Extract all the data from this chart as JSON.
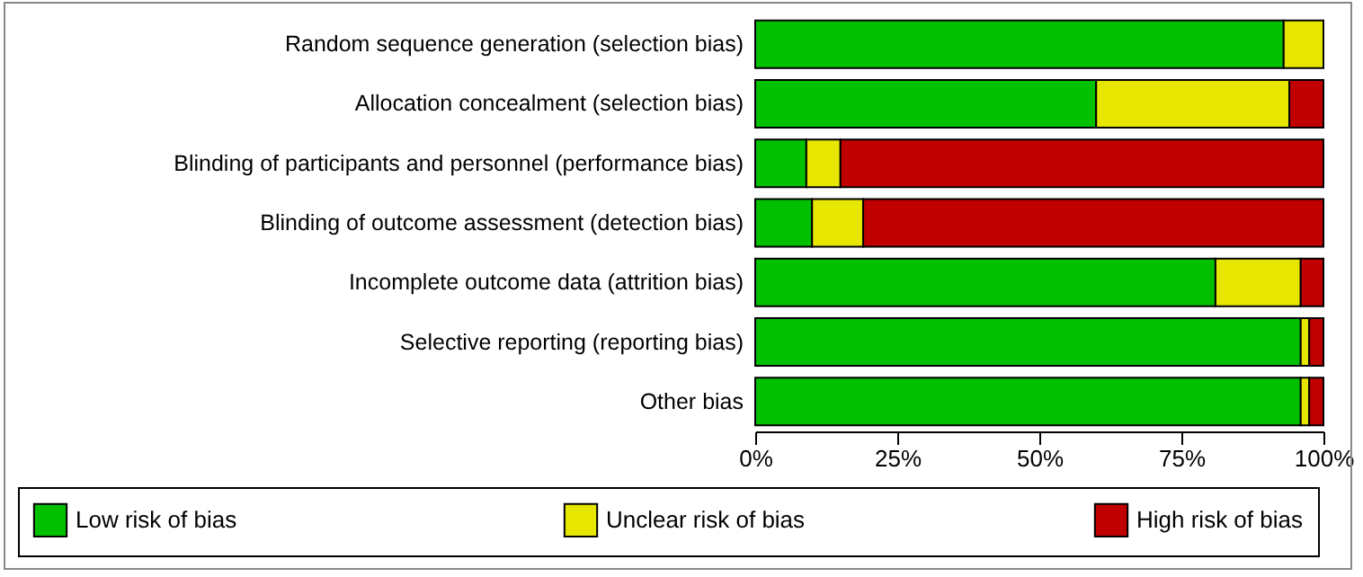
{
  "chart_data": {
    "type": "bar",
    "orientation": "horizontal",
    "stacked": true,
    "categories": [
      "Random sequence generation (selection bias)",
      "Allocation concealment (selection bias)",
      "Blinding of participants and personnel (performance bias)",
      "Blinding of outcome assessment (detection bias)",
      "Incomplete outcome data (attrition bias)",
      "Selective reporting (reporting bias)",
      "Other bias"
    ],
    "series": [
      {
        "name": "Low risk of bias",
        "color": "#00c000",
        "values": [
          93,
          60,
          9,
          10,
          81,
          96,
          96
        ]
      },
      {
        "name": "Unclear risk of bias",
        "color": "#e6e600",
        "values": [
          7,
          34,
          6,
          9,
          15,
          1.5,
          1.5
        ]
      },
      {
        "name": "High risk of bias",
        "color": "#c00000",
        "values": [
          null,
          6,
          85,
          81,
          4,
          2.5,
          2.5
        ]
      }
    ],
    "xlim": [
      0,
      100
    ],
    "xticks": [
      {
        "value": 0,
        "label": "0%"
      },
      {
        "value": 25,
        "label": "25%"
      },
      {
        "value": 50,
        "label": "50%"
      },
      {
        "value": 75,
        "label": "75%"
      },
      {
        "value": 100,
        "label": "100%"
      }
    ],
    "grid": false,
    "legend": "bottom"
  }
}
